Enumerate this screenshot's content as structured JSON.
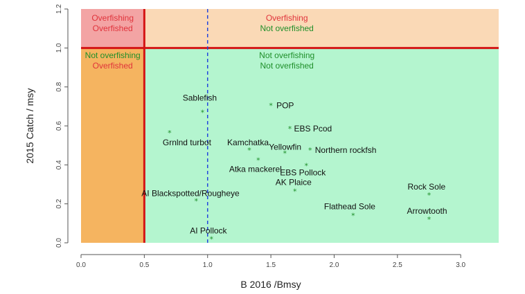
{
  "chart_data": {
    "type": "scatter",
    "title": "",
    "xlabel": "B 2016 /Bmsy",
    "ylabel": "2015 Catch / msy",
    "xlim": [
      0,
      3.3
    ],
    "ylim": [
      0,
      1.2
    ],
    "x_ticks": [
      "0.0",
      "0.5",
      "1.0",
      "1.5",
      "2.0",
      "2.5",
      "3.0"
    ],
    "y_ticks": [
      "0.0",
      "0.2",
      "0.4",
      "0.6",
      "0.8",
      "1.0",
      "1.2"
    ],
    "grid": false,
    "reference_lines": {
      "vertical_solid": 0.5,
      "horizontal_solid": 1.0,
      "vertical_dashed": 1.0
    },
    "quadrants": [
      {
        "line1": "Overfishing",
        "line2": "Overfished",
        "color1": "#e0333b",
        "color2": "#e0333b",
        "fill": "#f3a4a4"
      },
      {
        "line1": "Overfishing",
        "line2": "Not overfished",
        "color1": "#e0333b",
        "color2": "#1f8f2a",
        "fill": "#fad9b6"
      },
      {
        "line1": "Not overfishing",
        "line2": "Overfished",
        "color1": "#1f8f2a",
        "color2": "#e0333b",
        "fill": "#f5b460"
      },
      {
        "line1": "Not overfishing",
        "line2": "Not overfished",
        "color1": "#1f8f2a",
        "color2": "#1f8f2a",
        "fill": "#b4f5cf"
      }
    ],
    "colors": {
      "threshold_line": "#d41414",
      "dashed_line": "#2244dd",
      "point": "#1f8f2a"
    },
    "points": [
      {
        "label": "POP",
        "x": 1.5,
        "y": 0.705
      },
      {
        "label": "Sablefish",
        "x": 0.96,
        "y": 0.67
      },
      {
        "label": "EBS Pcod",
        "x": 1.65,
        "y": 0.585
      },
      {
        "label": "Grnlnd turbot",
        "x": 0.7,
        "y": 0.565
      },
      {
        "label": "Kamchatka",
        "x": 1.33,
        "y": 0.475
      },
      {
        "label": "Yellowfin",
        "x": 1.61,
        "y": 0.46
      },
      {
        "label": "Northern rockfsh",
        "x": 1.81,
        "y": 0.475
      },
      {
        "label": "Atka mackerel",
        "x": 1.4,
        "y": 0.425
      },
      {
        "label": "EBS Pollock",
        "x": 1.78,
        "y": 0.395
      },
      {
        "label": "AK Plaice",
        "x": 1.69,
        "y": 0.265
      },
      {
        "label": "AI Blackspotted/Rougheye",
        "x": 0.91,
        "y": 0.215
      },
      {
        "label": "Rock Sole",
        "x": 2.75,
        "y": 0.245
      },
      {
        "label": "Flathead Sole",
        "x": 2.15,
        "y": 0.14
      },
      {
        "label": "Arrowtooth",
        "x": 2.75,
        "y": 0.12
      },
      {
        "label": "AI Pollock",
        "x": 1.03,
        "y": 0.02
      }
    ]
  }
}
